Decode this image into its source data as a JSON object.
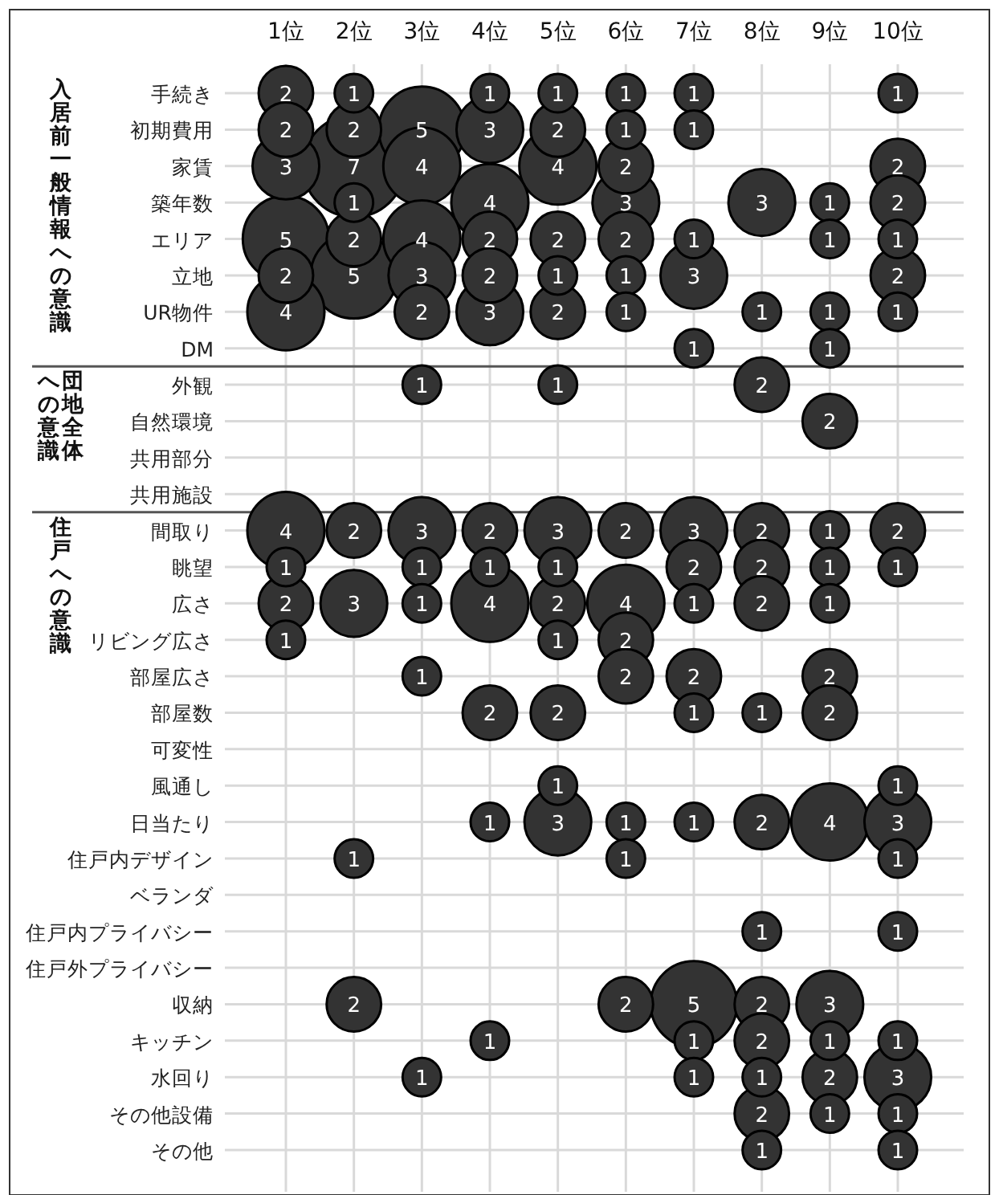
{
  "chart_data": {
    "type": "heatmap",
    "categories": [
      "1位",
      "2位",
      "3位",
      "4位",
      "5位",
      "6位",
      "7位",
      "8位",
      "9位",
      "10位"
    ],
    "y_categories": [
      "手続き",
      "初期費用",
      "家賃",
      "築年数",
      "エリア",
      "立地",
      "UR物件",
      "DM",
      "外観",
      "自然環境",
      "共用部分",
      "共用施設",
      "間取り",
      "眺望",
      "広さ",
      "リビング広さ",
      "部屋広さ",
      "部屋数",
      "可変性",
      "風通し",
      "日当たり",
      "住戸内デザイン",
      "ベランダ",
      "住戸内プライバシー",
      "住戸外プライバシー",
      "収納",
      "キッチン",
      "水回り",
      "その他設備",
      "その他"
    ],
    "cells": [
      [
        2,
        1,
        null,
        1,
        1,
        1,
        1,
        null,
        null,
        1
      ],
      [
        2,
        2,
        5,
        3,
        2,
        1,
        1,
        null,
        null,
        null
      ],
      [
        3,
        7,
        4,
        null,
        4,
        2,
        null,
        null,
        null,
        2
      ],
      [
        null,
        1,
        null,
        4,
        null,
        3,
        null,
        3,
        1,
        2
      ],
      [
        5,
        2,
        4,
        2,
        2,
        2,
        1,
        null,
        1,
        1
      ],
      [
        2,
        5,
        3,
        2,
        1,
        1,
        3,
        null,
        null,
        2
      ],
      [
        4,
        null,
        2,
        3,
        2,
        1,
        null,
        1,
        1,
        1
      ],
      [
        null,
        null,
        null,
        null,
        null,
        null,
        1,
        null,
        1,
        null
      ],
      [
        null,
        null,
        1,
        null,
        1,
        null,
        null,
        2,
        null,
        null
      ],
      [
        null,
        null,
        null,
        null,
        null,
        null,
        null,
        null,
        2,
        null
      ],
      [
        null,
        null,
        null,
        null,
        null,
        null,
        null,
        null,
        null,
        null
      ],
      [
        null,
        null,
        null,
        null,
        null,
        null,
        null,
        null,
        null,
        null
      ],
      [
        4,
        2,
        3,
        2,
        3,
        2,
        3,
        2,
        1,
        2
      ],
      [
        1,
        null,
        1,
        1,
        1,
        null,
        2,
        2,
        1,
        1
      ],
      [
        2,
        3,
        1,
        4,
        2,
        4,
        1,
        2,
        1,
        null
      ],
      [
        1,
        null,
        null,
        null,
        1,
        2,
        null,
        null,
        null,
        null
      ],
      [
        null,
        null,
        1,
        null,
        null,
        2,
        2,
        null,
        2,
        null
      ],
      [
        null,
        null,
        null,
        2,
        2,
        null,
        1,
        1,
        2,
        null
      ],
      [
        null,
        null,
        null,
        null,
        null,
        null,
        null,
        null,
        null,
        null
      ],
      [
        null,
        null,
        null,
        null,
        1,
        null,
        null,
        null,
        null,
        1
      ],
      [
        null,
        null,
        null,
        1,
        3,
        1,
        1,
        2,
        4,
        3
      ],
      [
        null,
        1,
        null,
        null,
        null,
        1,
        null,
        null,
        null,
        1
      ],
      [
        null,
        null,
        null,
        null,
        null,
        null,
        null,
        null,
        null,
        null
      ],
      [
        null,
        null,
        null,
        null,
        null,
        null,
        null,
        1,
        null,
        1
      ],
      [
        null,
        null,
        null,
        null,
        null,
        null,
        null,
        null,
        null,
        null
      ],
      [
        null,
        2,
        null,
        null,
        null,
        2,
        5,
        2,
        3,
        null
      ],
      [
        null,
        null,
        null,
        1,
        null,
        null,
        1,
        2,
        1,
        1
      ],
      [
        null,
        null,
        1,
        null,
        null,
        null,
        1,
        1,
        2,
        3
      ],
      [
        null,
        null,
        null,
        null,
        null,
        null,
        null,
        2,
        1,
        1
      ],
      [
        null,
        null,
        null,
        null,
        null,
        null,
        null,
        1,
        null,
        1
      ]
    ],
    "color": "#333333",
    "data_labels": true,
    "grid": true,
    "annotations": [
      "入居前一般情報への意識",
      "団地全体への意識",
      "住戸への意識"
    ]
  }
}
